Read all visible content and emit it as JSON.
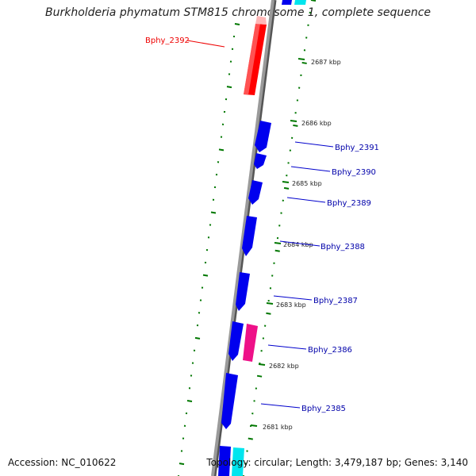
{
  "title": "Burkholderia phymatum STM815 chromosome 1, complete sequence",
  "accession": "Accession: NC_010622",
  "topology": "Topology: circular; Length: 3,479,187 bp; Genes: 3,140",
  "colors": {
    "forward_gene": "#0000ee",
    "reverse_gene": "#ff0000",
    "rna_gene": "#ee1188",
    "highlight": "#00e5ee",
    "backbone": "#888888",
    "ticks": "#007700"
  },
  "tick_labels": [
    "2687 kbp",
    "2686 kbp",
    "2685 kbp",
    "2684 kbp",
    "2683 kbp",
    "2682 kbp",
    "2681 kbp"
  ],
  "genes": [
    {
      "label": "Bphy_2392",
      "color": "#ee0000"
    },
    {
      "label": "Bphy_2391",
      "color": "#0000aa"
    },
    {
      "label": "Bphy_2390",
      "color": "#0000aa"
    },
    {
      "label": "Bphy_2389",
      "color": "#0000aa"
    },
    {
      "label": "Bphy_2388",
      "color": "#0000aa"
    },
    {
      "label": "Bphy_2387",
      "color": "#0000aa"
    },
    {
      "label": "Bphy_2386",
      "color": "#0000aa"
    },
    {
      "label": "Bphy_2385",
      "color": "#0000aa"
    }
  ]
}
